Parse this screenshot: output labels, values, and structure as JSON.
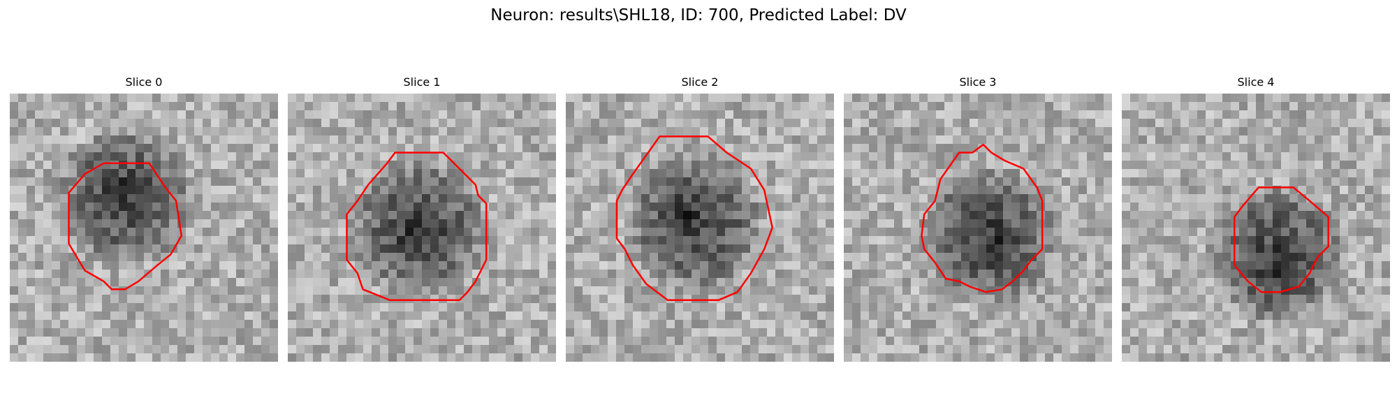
{
  "figure": {
    "title": "Neuron: results\\SHL18, ID: 700, Predicted Label: DV"
  },
  "colors": {
    "background": "#ffffff",
    "contour": "#ff0000"
  },
  "slices": [
    {
      "title": "Slice 0",
      "cell_center": [
        0.43,
        0.39
      ],
      "cell_dark_center": [
        0.43,
        0.37
      ],
      "contour": [
        [
          0.35,
          0.26
        ],
        [
          0.52,
          0.26
        ],
        [
          0.58,
          0.35
        ],
        [
          0.62,
          0.4
        ],
        [
          0.64,
          0.53
        ],
        [
          0.6,
          0.6
        ],
        [
          0.55,
          0.64
        ],
        [
          0.48,
          0.7
        ],
        [
          0.43,
          0.73
        ],
        [
          0.38,
          0.73
        ],
        [
          0.35,
          0.7
        ],
        [
          0.28,
          0.66
        ],
        [
          0.22,
          0.56
        ],
        [
          0.22,
          0.37
        ],
        [
          0.28,
          0.3
        ]
      ]
    },
    {
      "title": "Slice 1",
      "cell_center": [
        0.49,
        0.5
      ],
      "cell_dark_center": [
        0.48,
        0.52
      ],
      "contour": [
        [
          0.4,
          0.22
        ],
        [
          0.58,
          0.22
        ],
        [
          0.65,
          0.29
        ],
        [
          0.7,
          0.34
        ],
        [
          0.71,
          0.38
        ],
        [
          0.74,
          0.41
        ],
        [
          0.74,
          0.62
        ],
        [
          0.7,
          0.7
        ],
        [
          0.67,
          0.74
        ],
        [
          0.64,
          0.77
        ],
        [
          0.59,
          0.77
        ],
        [
          0.57,
          0.77
        ],
        [
          0.38,
          0.77
        ],
        [
          0.28,
          0.73
        ],
        [
          0.26,
          0.67
        ],
        [
          0.22,
          0.62
        ],
        [
          0.22,
          0.45
        ],
        [
          0.26,
          0.4
        ],
        [
          0.3,
          0.34
        ],
        [
          0.37,
          0.26
        ]
      ]
    },
    {
      "title": "Slice 2",
      "cell_center": [
        0.48,
        0.48
      ],
      "cell_dark_center": [
        0.45,
        0.47
      ],
      "contour": [
        [
          0.35,
          0.16
        ],
        [
          0.53,
          0.16
        ],
        [
          0.6,
          0.22
        ],
        [
          0.69,
          0.28
        ],
        [
          0.74,
          0.36
        ],
        [
          0.77,
          0.5
        ],
        [
          0.74,
          0.58
        ],
        [
          0.69,
          0.67
        ],
        [
          0.64,
          0.74
        ],
        [
          0.57,
          0.77
        ],
        [
          0.38,
          0.77
        ],
        [
          0.3,
          0.71
        ],
        [
          0.25,
          0.64
        ],
        [
          0.22,
          0.58
        ],
        [
          0.19,
          0.54
        ],
        [
          0.19,
          0.4
        ],
        [
          0.21,
          0.36
        ],
        [
          0.25,
          0.3
        ],
        [
          0.3,
          0.23
        ]
      ]
    },
    {
      "title": "Slice 3",
      "cell_center": [
        0.54,
        0.53
      ],
      "cell_dark_center": [
        0.55,
        0.55
      ],
      "contour": [
        [
          0.43,
          0.22
        ],
        [
          0.48,
          0.22
        ],
        [
          0.52,
          0.19
        ],
        [
          0.55,
          0.22
        ],
        [
          0.6,
          0.25
        ],
        [
          0.67,
          0.28
        ],
        [
          0.72,
          0.35
        ],
        [
          0.74,
          0.4
        ],
        [
          0.74,
          0.58
        ],
        [
          0.7,
          0.62
        ],
        [
          0.67,
          0.66
        ],
        [
          0.63,
          0.7
        ],
        [
          0.59,
          0.73
        ],
        [
          0.53,
          0.74
        ],
        [
          0.47,
          0.72
        ],
        [
          0.43,
          0.7
        ],
        [
          0.38,
          0.69
        ],
        [
          0.34,
          0.63
        ],
        [
          0.3,
          0.58
        ],
        [
          0.29,
          0.53
        ],
        [
          0.3,
          0.45
        ],
        [
          0.34,
          0.4
        ],
        [
          0.36,
          0.32
        ]
      ]
    },
    {
      "title": "Slice 4",
      "cell_center": [
        0.58,
        0.6
      ],
      "cell_dark_center": [
        0.58,
        0.63
      ],
      "contour": [
        [
          0.51,
          0.35
        ],
        [
          0.64,
          0.35
        ],
        [
          0.7,
          0.4
        ],
        [
          0.77,
          0.46
        ],
        [
          0.77,
          0.57
        ],
        [
          0.73,
          0.61
        ],
        [
          0.7,
          0.67
        ],
        [
          0.66,
          0.72
        ],
        [
          0.59,
          0.74
        ],
        [
          0.52,
          0.74
        ],
        [
          0.47,
          0.7
        ],
        [
          0.42,
          0.64
        ],
        [
          0.42,
          0.46
        ],
        [
          0.45,
          0.42
        ]
      ]
    }
  ]
}
